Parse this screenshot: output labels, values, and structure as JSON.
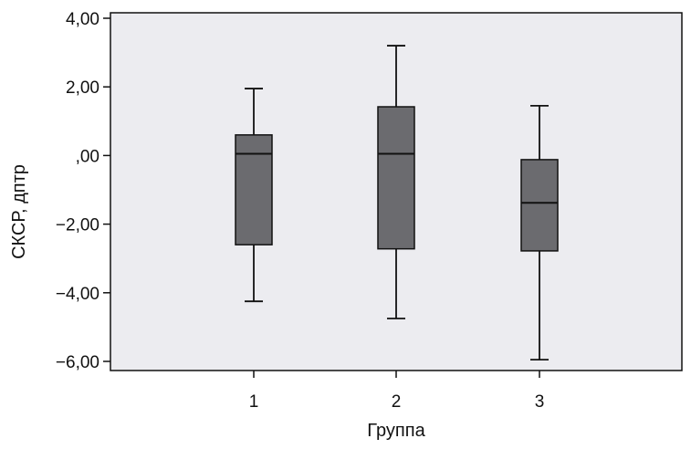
{
  "chart_data": {
    "type": "boxplot",
    "xlabel": "Группа",
    "ylabel": "СКСР, дптр",
    "ylim": [
      -6.2,
      4.2
    ],
    "y_ticks": [
      {
        "value": 4,
        "label": "4,00"
      },
      {
        "value": 2,
        "label": "2,00"
      },
      {
        "value": 0,
        "label": ",00"
      },
      {
        "value": -2,
        "label": "−2,00"
      },
      {
        "value": -4,
        "label": "−4,00"
      },
      {
        "value": -6,
        "label": "−6,00"
      }
    ],
    "categories": [
      "1",
      "2",
      "3"
    ],
    "boxes": [
      {
        "category": "1",
        "min": -4.25,
        "q1": -2.6,
        "median": 0.05,
        "q3": 0.6,
        "max": 1.95
      },
      {
        "category": "2",
        "min": -4.75,
        "q1": -2.72,
        "median": 0.05,
        "q3": 1.42,
        "max": 3.2
      },
      {
        "category": "3",
        "min": -5.95,
        "q1": -2.78,
        "median": -1.38,
        "q3": -0.12,
        "max": 1.45
      }
    ],
    "grid": false,
    "colors": {
      "plot_background": "#ececf0",
      "box_fill": "#6b6b6f",
      "line": "#111111"
    }
  }
}
